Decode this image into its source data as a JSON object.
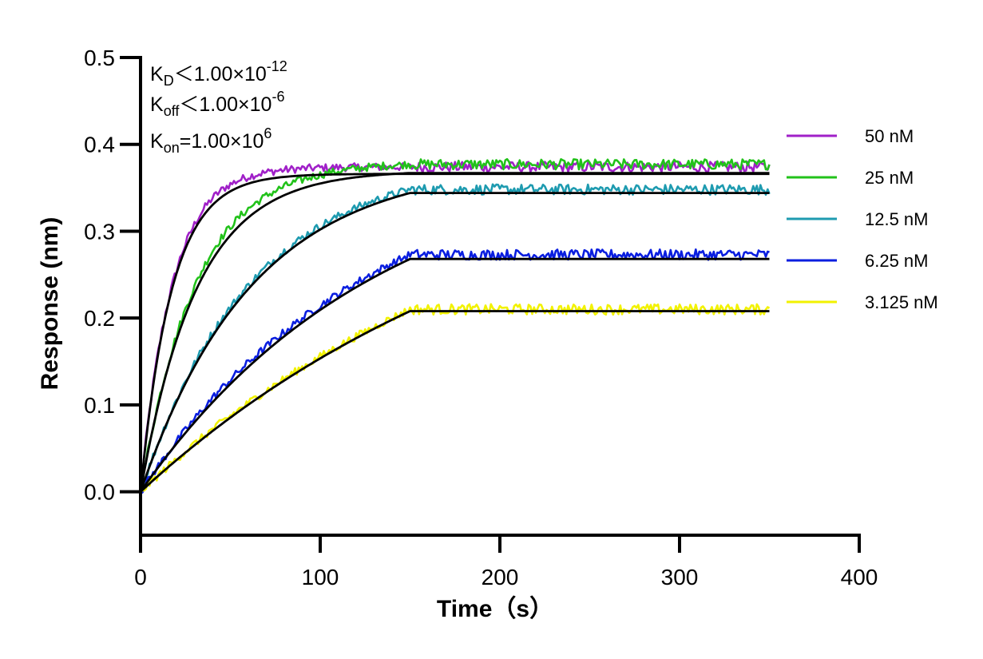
{
  "chart_data": {
    "type": "line",
    "xlabel": "Time（s）",
    "ylabel": "Response (nm)",
    "xlim": [
      0,
      400
    ],
    "ylim": [
      -0.05,
      0.5
    ],
    "x_ticks": [
      0,
      100,
      200,
      300,
      400
    ],
    "x_tick_labels": [
      "0",
      "100",
      "200",
      "300",
      "400"
    ],
    "y_ticks": [
      0.0,
      0.1,
      0.2,
      0.3,
      0.4,
      0.5
    ],
    "y_tick_labels": [
      "0.0",
      "0.1",
      "0.2",
      "0.3",
      "0.4",
      "0.5"
    ],
    "grid": false,
    "legend_position": "right",
    "annotations": {
      "kd": {
        "main": "K",
        "sub": "D",
        "rest": "＜1.00×10",
        "sup": "-12"
      },
      "koff": {
        "main": "K",
        "sub": "off",
        "rest": "＜1.00×10",
        "sup": "-6"
      },
      "kon": {
        "main": "K",
        "sub": "on",
        "rest": "=1.00×10",
        "sup": "6"
      }
    },
    "association_end": 150,
    "x_end": 350,
    "fit_color": "#000000",
    "series": [
      {
        "name": "50 nM",
        "color": "#A020C8",
        "plateau": 0.366,
        "k": 0.058,
        "observed_offset": 0.008
      },
      {
        "name": "25 nM",
        "color": "#22C21A",
        "plateau": 0.367,
        "k": 0.032,
        "observed_offset": 0.01
      },
      {
        "name": "12.5 nM",
        "color": "#1E9BB0",
        "plateau": 0.344,
        "k": 0.016,
        "observed_offset": 0.004
      },
      {
        "name": "6.25 nM",
        "color": "#0A1EE0",
        "plateau": 0.268,
        "k": 0.0075,
        "observed_offset": 0.005
      },
      {
        "name": "3.125 nM",
        "color": "#F2F200",
        "plateau": 0.208,
        "k": 0.0045,
        "observed_offset": 0.002
      }
    ]
  }
}
